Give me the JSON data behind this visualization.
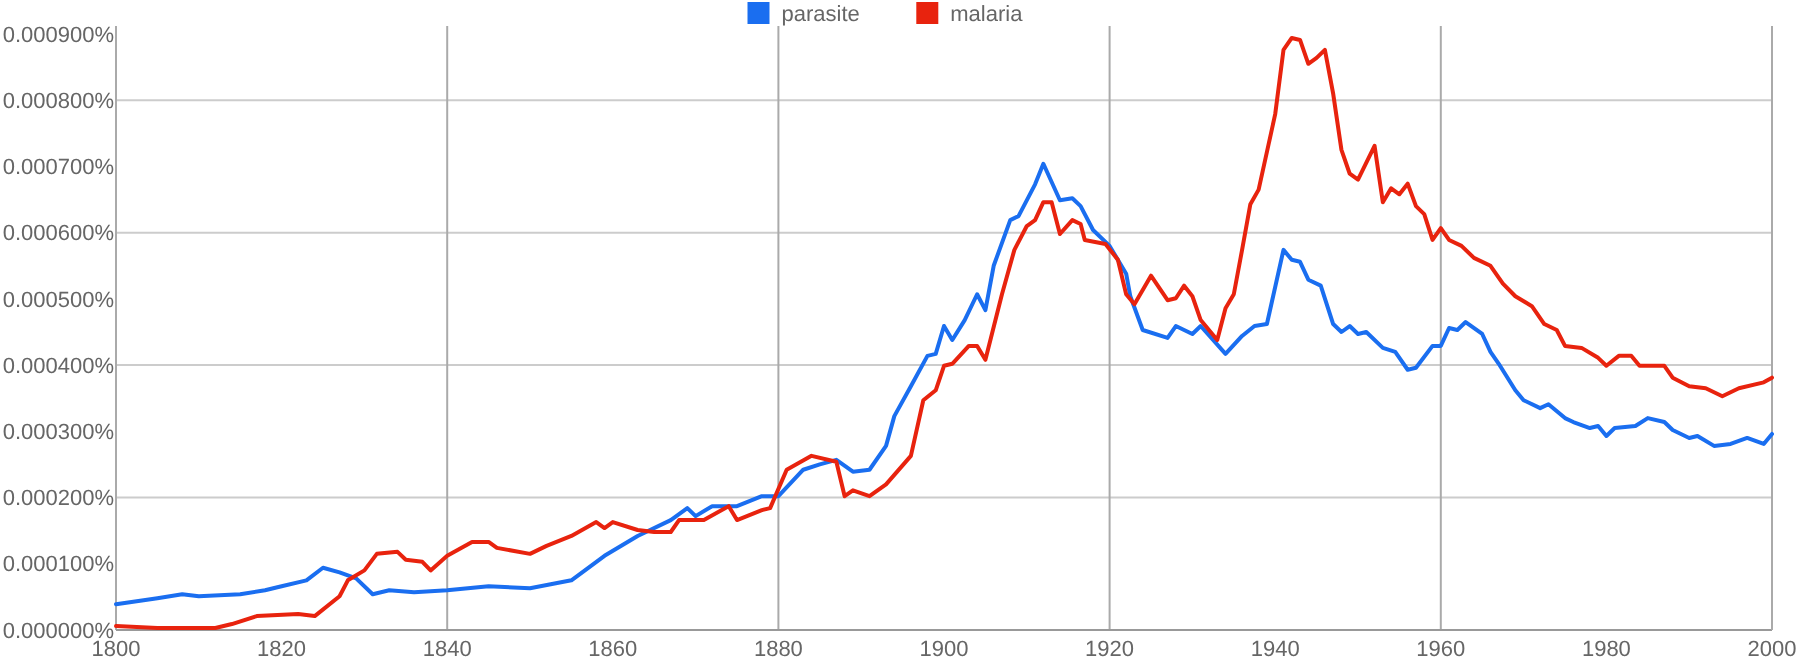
{
  "chart_data": {
    "type": "line",
    "xlim": [
      1800,
      2000
    ],
    "ylim": [
      0,
      0.0009
    ],
    "xticks": [
      1800,
      1820,
      1840,
      1860,
      1880,
      1900,
      1920,
      1940,
      1960,
      1980,
      2000
    ],
    "yticks": [
      {
        "value": 0,
        "label": "0.000000%"
      },
      {
        "value": 0.0001,
        "label": "0.000100%"
      },
      {
        "value": 0.0002,
        "label": "0.000200%"
      },
      {
        "value": 0.0003,
        "label": "0.000300%"
      },
      {
        "value": 0.0004,
        "label": "0.000400%"
      },
      {
        "value": 0.0005,
        "label": "0.000500%"
      },
      {
        "value": 0.0006,
        "label": "0.000600%"
      },
      {
        "value": 0.0007,
        "label": "0.000700%"
      },
      {
        "value": 0.0008,
        "label": "0.000800%"
      },
      {
        "value": 0.0009,
        "label": "0.000900%"
      }
    ],
    "grid": true,
    "legend": "top",
    "line_style": "solid",
    "series": [
      {
        "name": "parasite",
        "color": "#1a6ef0",
        "x": [
          1800,
          1805,
          1808,
          1810,
          1815,
          1818,
          1820,
          1823,
          1825,
          1827,
          1829,
          1831,
          1833,
          1836,
          1840,
          1845,
          1850,
          1855,
          1859,
          1863,
          1867,
          1869,
          1870,
          1872,
          1875,
          1878,
          1880,
          1883,
          1885,
          1887,
          1889,
          1891,
          1893,
          1894,
          1896,
          1898,
          1899,
          1900,
          1901,
          1902.5,
          1904,
          1905,
          1906,
          1908,
          1909,
          1911,
          1912,
          1914,
          1915.5,
          1916.5,
          1918,
          1920,
          1922,
          1922.5,
          1924,
          1927,
          1928,
          1930,
          1931,
          1934,
          1936,
          1937.5,
          1939,
          1941,
          1942,
          1943,
          1944,
          1945.5,
          1947,
          1948,
          1949,
          1950,
          1951,
          1953,
          1954.5,
          1956,
          1957,
          1959,
          1960,
          1961,
          1962,
          1963,
          1965,
          1966,
          1967,
          1969,
          1970,
          1972,
          1973,
          1975,
          1976,
          1978,
          1979,
          1980,
          1981,
          1983.5,
          1985,
          1987,
          1988,
          1990,
          1991,
          1993,
          1995,
          1997,
          1999,
          2000
        ],
        "values": [
          3.9e-05,
          4.8e-05,
          5.4e-05,
          5.1e-05,
          5.4e-05,
          6e-05,
          6.6e-05,
          7.5e-05,
          9.4e-05,
          8.7e-05,
          7.8e-05,
          5.4e-05,
          6e-05,
          5.7e-05,
          6e-05,
          6.6e-05,
          6.3e-05,
          7.5e-05,
          0.000112,
          0.000142,
          0.000166,
          0.000184,
          0.000172,
          0.000187,
          0.000187,
          0.000202,
          0.000202,
          0.000242,
          0.00025,
          0.000257,
          0.000239,
          0.000242,
          0.000278,
          0.000323,
          0.000368,
          0.000414,
          0.000417,
          0.000459,
          0.000438,
          0.000468,
          0.000507,
          0.000483,
          0.00055,
          0.000619,
          0.000625,
          0.000673,
          0.000704,
          0.000649,
          0.000652,
          0.00064,
          0.000604,
          0.00058,
          0.000538,
          0.000504,
          0.000453,
          0.000441,
          0.000459,
          0.000447,
          0.000459,
          0.000417,
          0.000444,
          0.000459,
          0.000462,
          0.000574,
          0.000559,
          0.000556,
          0.000529,
          0.00052,
          0.000462,
          0.00045,
          0.000459,
          0.000447,
          0.00045,
          0.000426,
          0.00042,
          0.000393,
          0.000396,
          0.000429,
          0.000429,
          0.000456,
          0.000453,
          0.000465,
          0.000447,
          0.00042,
          0.000402,
          0.000362,
          0.000347,
          0.000335,
          0.000341,
          0.00032,
          0.000314,
          0.000305,
          0.000308,
          0.000293,
          0.000305,
          0.000308,
          0.00032,
          0.000314,
          0.000302,
          0.00029,
          0.000293,
          0.000278,
          0.000281,
          0.00029,
          0.000281,
          0.000296
        ]
      },
      {
        "name": "malaria",
        "color": "#e8230e",
        "x": [
          1800,
          1805,
          1812,
          1814,
          1817,
          1822,
          1824,
          1827,
          1828,
          1830,
          1831.5,
          1834,
          1835,
          1837,
          1838,
          1840,
          1843,
          1845,
          1846,
          1850,
          1852,
          1855,
          1858,
          1859,
          1860,
          1863,
          1865,
          1867,
          1868,
          1871,
          1874,
          1875,
          1878,
          1879,
          1881,
          1884,
          1887,
          1888,
          1889,
          1891,
          1893,
          1896,
          1897.5,
          1899,
          1900,
          1901,
          1903,
          1904,
          1905,
          1907,
          1908.5,
          1910,
          1911,
          1912,
          1913,
          1914,
          1915.5,
          1916.5,
          1917,
          1919.5,
          1921,
          1922,
          1923,
          1925,
          1927,
          1928,
          1929,
          1930,
          1931,
          1933,
          1934,
          1935,
          1936,
          1937,
          1938,
          1940,
          1941,
          1942,
          1943,
          1944,
          1945,
          1946,
          1947,
          1948,
          1949,
          1950,
          1952,
          1953,
          1954,
          1955,
          1956,
          1957,
          1958,
          1959,
          1960,
          1961,
          1962.5,
          1964,
          1966,
          1967.5,
          1969,
          1971,
          1972.5,
          1974,
          1975,
          1977,
          1979,
          1980,
          1981.5,
          1983,
          1984,
          1987,
          1988,
          1990,
          1992,
          1994,
          1996,
          1999,
          2000
        ],
        "values": [
          6e-06,
          3e-06,
          3e-06,
          9e-06,
          2.1e-05,
          2.4e-05,
          2.1e-05,
          5.1e-05,
          7.5e-05,
          9e-05,
          0.000115,
          0.000118,
          0.000106,
          0.000103,
          9e-05,
          0.000112,
          0.000133,
          0.000133,
          0.000124,
          0.000115,
          0.000127,
          0.000142,
          0.000163,
          0.000154,
          0.000163,
          0.000151,
          0.000148,
          0.000148,
          0.000166,
          0.000166,
          0.000187,
          0.000166,
          0.000181,
          0.000184,
          0.000242,
          0.000263,
          0.000254,
          0.000202,
          0.000211,
          0.000202,
          0.00022,
          0.000263,
          0.000347,
          0.000362,
          0.000399,
          0.000402,
          0.000429,
          0.000429,
          0.000408,
          0.000507,
          0.000574,
          0.00061,
          0.000619,
          0.000646,
          0.000646,
          0.000598,
          0.000619,
          0.000613,
          0.000589,
          0.000583,
          0.000559,
          0.000507,
          0.000492,
          0.000535,
          0.000498,
          0.000501,
          0.00052,
          0.000504,
          0.000468,
          0.000438,
          0.000486,
          0.000507,
          0.000574,
          0.000643,
          0.000665,
          0.000779,
          0.000876,
          0.000894,
          0.000891,
          0.000855,
          0.000864,
          0.000876,
          0.00081,
          0.000725,
          0.000689,
          0.00068,
          0.000731,
          0.000646,
          0.000667,
          0.000658,
          0.000674,
          0.00064,
          0.000628,
          0.000589,
          0.000607,
          0.000589,
          0.00058,
          0.000562,
          0.00055,
          0.000523,
          0.000504,
          0.000489,
          0.000462,
          0.000453,
          0.000429,
          0.000426,
          0.000411,
          0.000399,
          0.000414,
          0.000414,
          0.000399,
          0.000399,
          0.000381,
          0.000368,
          0.000365,
          0.000353,
          0.000365,
          0.000374,
          0.000381
        ]
      }
    ]
  }
}
